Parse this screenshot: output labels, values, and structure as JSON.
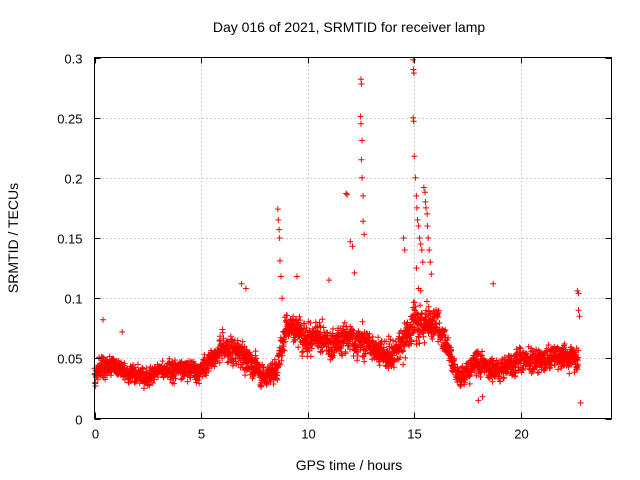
{
  "chart_data": {
    "type": "scatter",
    "title": "Day 016 of 2021, SRMTID for receiver lamp",
    "xlabel": "GPS time / hours",
    "ylabel": "SRMTID / TECUs",
    "xlim": [
      0,
      24.25
    ],
    "ylim": [
      0,
      0.3
    ],
    "xticks": [
      0,
      5,
      10,
      15,
      20
    ],
    "xtick_labels": [
      "0",
      "5",
      "10",
      "15",
      "20"
    ],
    "yticks": [
      0,
      0.05,
      0.1,
      0.15,
      0.2,
      0.25,
      0.3
    ],
    "ytick_labels": [
      "0",
      "0.05",
      "0.1",
      "0.15",
      "0.2",
      "0.25",
      "0.3"
    ],
    "grid": true,
    "marker": "plus",
    "color": "#ff0000",
    "series": [
      {
        "name": "SRMTID",
        "profile": [
          [
            0.0,
            0.038,
            0.012
          ],
          [
            0.5,
            0.045,
            0.013
          ],
          [
            1.0,
            0.042,
            0.012
          ],
          [
            2.0,
            0.036,
            0.01
          ],
          [
            3.0,
            0.038,
            0.011
          ],
          [
            4.0,
            0.042,
            0.012
          ],
          [
            5.0,
            0.04,
            0.012
          ],
          [
            6.0,
            0.06,
            0.016
          ],
          [
            7.0,
            0.052,
            0.016
          ],
          [
            8.0,
            0.035,
            0.012
          ],
          [
            8.6,
            0.042,
            0.014
          ],
          [
            9.0,
            0.08,
            0.016
          ],
          [
            10.0,
            0.068,
            0.018
          ],
          [
            11.0,
            0.062,
            0.016
          ],
          [
            12.0,
            0.068,
            0.018
          ],
          [
            13.0,
            0.06,
            0.018
          ],
          [
            14.0,
            0.05,
            0.016
          ],
          [
            15.0,
            0.08,
            0.022
          ],
          [
            16.0,
            0.08,
            0.02
          ],
          [
            16.5,
            0.065,
            0.018
          ],
          [
            17.0,
            0.035,
            0.01
          ],
          [
            18.0,
            0.045,
            0.014
          ],
          [
            19.0,
            0.04,
            0.013
          ],
          [
            20.0,
            0.05,
            0.014
          ],
          [
            21.0,
            0.048,
            0.014
          ],
          [
            22.0,
            0.052,
            0.014
          ],
          [
            22.7,
            0.05,
            0.015
          ]
        ],
        "extra_points": [
          [
            8.6,
            0.174
          ],
          [
            8.62,
            0.165
          ],
          [
            8.66,
            0.157
          ],
          [
            8.68,
            0.15
          ],
          [
            8.7,
            0.131
          ],
          [
            8.75,
            0.118
          ],
          [
            8.8,
            0.1
          ],
          [
            11.8,
            0.187
          ],
          [
            11.85,
            0.186
          ],
          [
            12.0,
            0.147
          ],
          [
            12.1,
            0.143
          ],
          [
            12.2,
            0.121
          ],
          [
            12.5,
            0.282
          ],
          [
            12.52,
            0.278
          ],
          [
            12.48,
            0.251
          ],
          [
            12.5,
            0.245
          ],
          [
            12.55,
            0.231
          ],
          [
            12.52,
            0.215
          ],
          [
            12.55,
            0.2
          ],
          [
            12.6,
            0.185
          ],
          [
            12.6,
            0.164
          ],
          [
            12.65,
            0.153
          ],
          [
            14.5,
            0.15
          ],
          [
            14.55,
            0.14
          ],
          [
            14.95,
            0.298
          ],
          [
            14.96,
            0.29
          ],
          [
            14.98,
            0.287
          ],
          [
            14.95,
            0.25
          ],
          [
            14.97,
            0.247
          ],
          [
            15.0,
            0.218
          ],
          [
            15.05,
            0.2
          ],
          [
            15.1,
            0.185
          ],
          [
            15.12,
            0.175
          ],
          [
            15.15,
            0.165
          ],
          [
            15.2,
            0.16
          ],
          [
            15.25,
            0.15
          ],
          [
            15.3,
            0.145
          ],
          [
            15.35,
            0.14
          ],
          [
            15.4,
            0.13
          ],
          [
            15.45,
            0.192
          ],
          [
            15.5,
            0.188
          ],
          [
            15.52,
            0.18
          ],
          [
            15.55,
            0.175
          ],
          [
            15.6,
            0.17
          ],
          [
            15.62,
            0.16
          ],
          [
            15.65,
            0.15
          ],
          [
            15.7,
            0.14
          ],
          [
            15.75,
            0.13
          ],
          [
            15.8,
            0.12
          ],
          [
            15.3,
            0.106
          ],
          [
            15.1,
            0.125
          ],
          [
            15.2,
            0.108
          ],
          [
            22.65,
            0.106
          ],
          [
            22.7,
            0.104
          ],
          [
            22.7,
            0.09
          ],
          [
            22.75,
            0.085
          ],
          [
            18.7,
            0.112
          ],
          [
            6.9,
            0.112
          ],
          [
            7.1,
            0.108
          ],
          [
            9.5,
            0.118
          ],
          [
            11.0,
            0.115
          ],
          [
            0.4,
            0.082
          ],
          [
            1.3,
            0.072
          ],
          [
            18.0,
            0.015
          ],
          [
            18.2,
            0.018
          ],
          [
            22.8,
            0.013
          ]
        ],
        "random_seed": 16
      }
    ]
  }
}
